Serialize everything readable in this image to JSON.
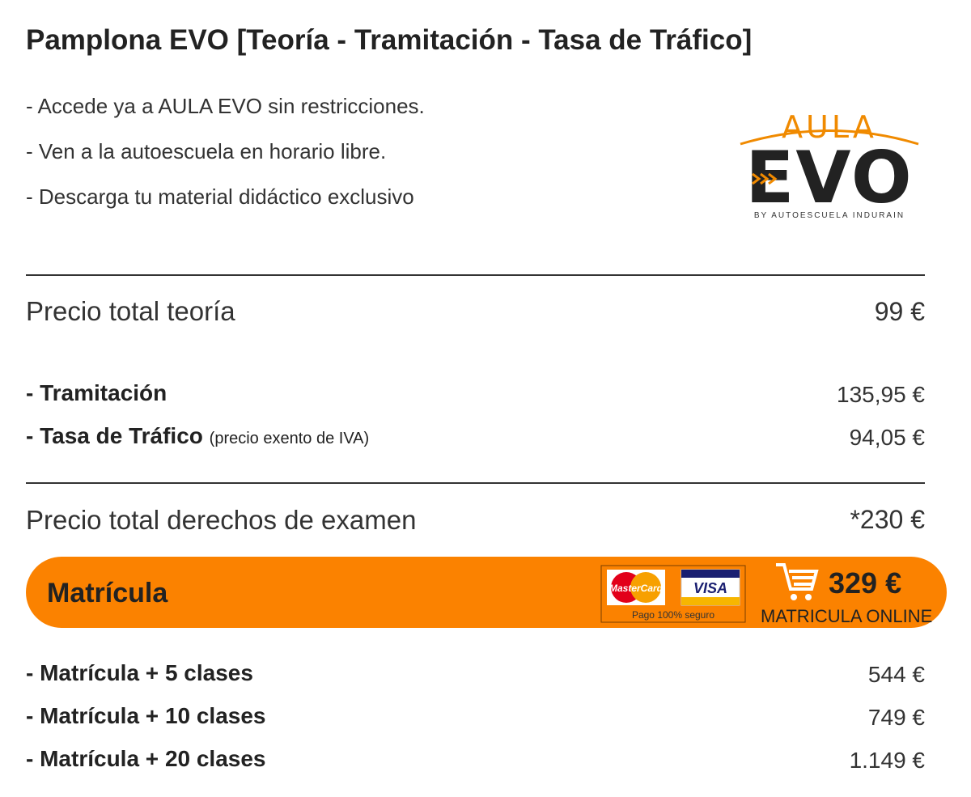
{
  "header": {
    "title": "Pamplona EVO  [Teoría - Tramitación - Tasa de Tráfico]"
  },
  "features": [
    "- Accede ya a AULA EVO sin restricciones.",
    "- Ven a la autoescuela en horario libre.",
    "- Descarga tu material didáctico exclusivo"
  ],
  "logo": {
    "top": "AULA",
    "main": "EVO",
    "tagline": "BY AUTOESCUELA INDURAIN"
  },
  "theory": {
    "label": "Precio total teoría",
    "price": "99 €"
  },
  "fees": [
    {
      "label": "- Tramitación",
      "price": "135,95 €"
    },
    {
      "label": "- Tasa de Tráfico",
      "note": "(precio exento de IVA)",
      "price": "94,05 €"
    }
  ],
  "exam_total": {
    "label": "Precio total derechos de examen",
    "price": "*230 €"
  },
  "enrollment": {
    "label": "Matrícula",
    "cards": [
      "MasterCard",
      "VISA"
    ],
    "secure": "Pago 100% seguro",
    "price": "329 €",
    "cta": "MATRICULA ONLINE"
  },
  "packages": [
    {
      "label": "- Matrícula + 5 clases",
      "price": "544 €"
    },
    {
      "label": "- Matrícula + 10 clases",
      "price": "749 €"
    },
    {
      "label": "- Matrícula + 20 clases",
      "price": "1.149 €"
    }
  ]
}
